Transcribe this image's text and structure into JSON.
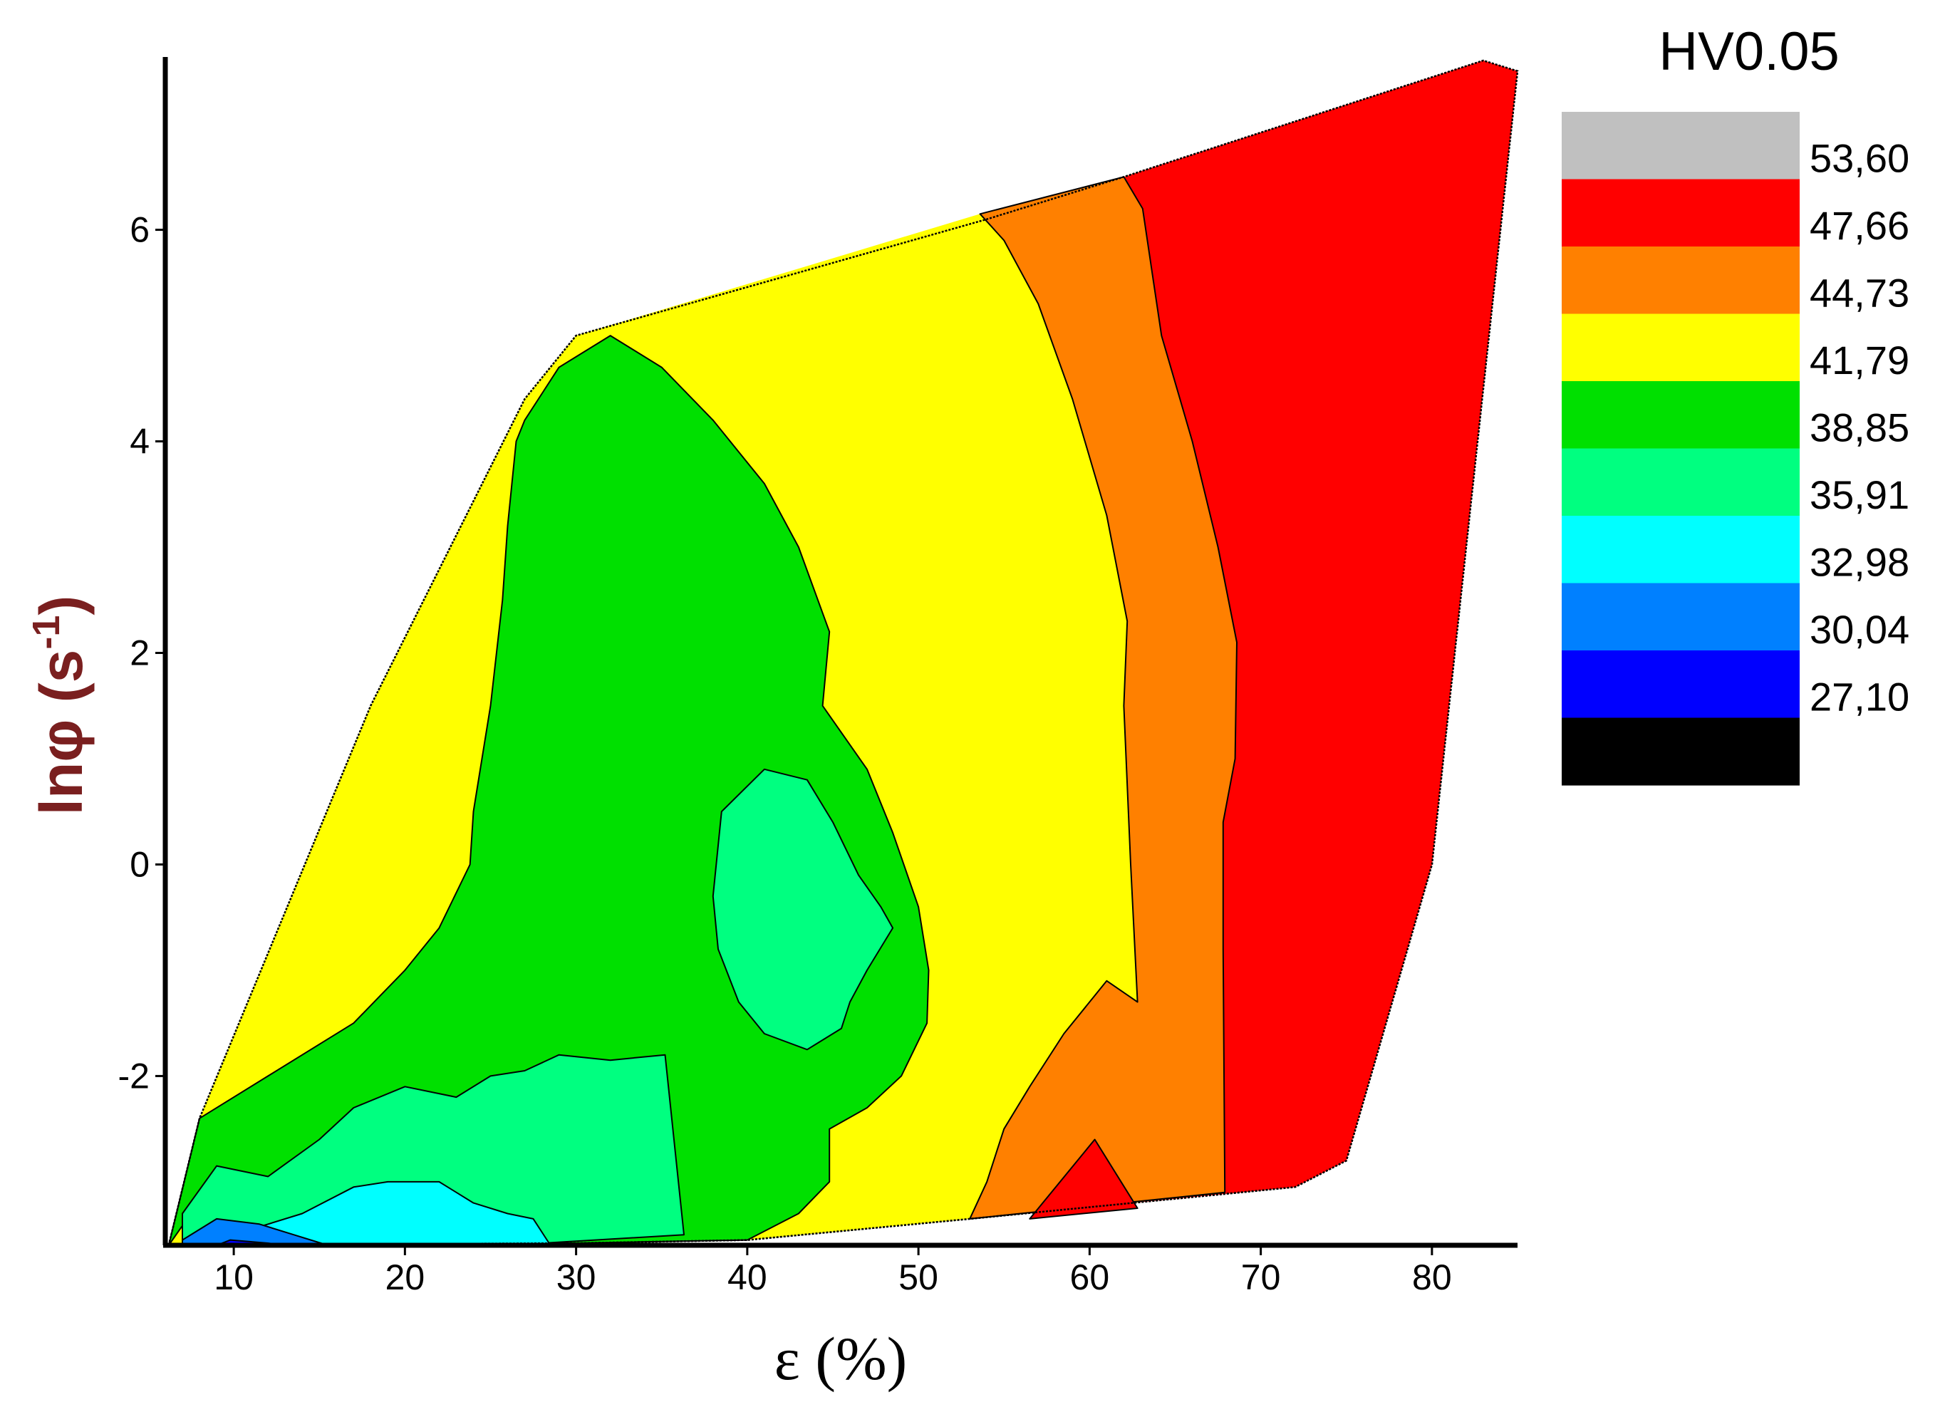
{
  "chart_data": {
    "type": "contour",
    "title": "",
    "xlabel": "ε (%)",
    "ylabel_main": "lnφ (s",
    "ylabel_sup": "-1",
    "ylabel_close": ")",
    "xlim": [
      6,
      85
    ],
    "ylim": [
      -3.6,
      7.6
    ],
    "x_ticks": [
      "10",
      "20",
      "30",
      "40",
      "50",
      "60",
      "70",
      "80"
    ],
    "x_tick_values": [
      10,
      20,
      30,
      40,
      50,
      60,
      70,
      80
    ],
    "y_ticks": [
      "-2",
      "0",
      "2",
      "4",
      "6"
    ],
    "y_tick_values": [
      -2,
      0,
      2,
      4,
      6
    ],
    "legend": {
      "title": "HV0.05",
      "levels": [
        "53,60",
        "47,66",
        "44,73",
        "41,79",
        "38,85",
        "35,91",
        "32,98",
        "30,04",
        "27,10"
      ],
      "colors": [
        "#c0c0c0",
        "#ff0000",
        "#ff8000",
        "#ffff00",
        "#00e000",
        "#00ff80",
        "#00ffff",
        "#0080ff",
        "#0000ff",
        "#000000"
      ]
    },
    "domain_boundary": [
      [
        6.2,
        -3.6
      ],
      [
        8.0,
        -2.4
      ],
      [
        18.0,
        1.5
      ],
      [
        27.0,
        4.4
      ],
      [
        30.0,
        5.0
      ],
      [
        54.0,
        6.1
      ],
      [
        62.0,
        6.5
      ],
      [
        83.0,
        7.6
      ],
      [
        85.0,
        7.5
      ],
      [
        80.0,
        0.0
      ],
      [
        75.0,
        -2.8
      ],
      [
        72.0,
        -3.05
      ],
      [
        53.0,
        -3.35
      ],
      [
        40.0,
        -3.55
      ],
      [
        30.0,
        -3.58
      ],
      [
        6.2,
        -3.6
      ]
    ],
    "regions": [
      {
        "band": "44,73–47,66",
        "color": "#ff8000",
        "polygon": [
          [
            53.6,
            6.15
          ],
          [
            62.0,
            6.5
          ],
          [
            63.1,
            6.2
          ],
          [
            64.2,
            5.0
          ],
          [
            66.0,
            4.0
          ],
          [
            67.5,
            3.0
          ],
          [
            68.6,
            2.1
          ],
          [
            68.5,
            1.0
          ],
          [
            67.8,
            0.4
          ],
          [
            67.8,
            -0.8
          ],
          [
            67.9,
            -3.1
          ],
          [
            53.0,
            -3.35
          ],
          [
            54.0,
            -3.0
          ],
          [
            55.0,
            -2.5
          ],
          [
            56.5,
            -2.1
          ],
          [
            58.5,
            -1.6
          ],
          [
            61.0,
            -1.1
          ],
          [
            62.8,
            -1.3
          ],
          [
            62.4,
            0.0
          ],
          [
            62.0,
            1.5
          ],
          [
            62.2,
            2.3
          ],
          [
            61.0,
            3.3
          ],
          [
            59.0,
            4.4
          ],
          [
            57.0,
            5.3
          ],
          [
            55.0,
            5.9
          ]
        ]
      },
      {
        "band": "47,66–53,60",
        "color": "#ff0000",
        "polygon": [
          [
            56.5,
            -3.35
          ],
          [
            60.3,
            -2.6
          ],
          [
            62.8,
            -3.25
          ]
        ]
      },
      {
        "band": "41,79–44,73",
        "color": "#00e000",
        "polygon": [
          [
            8.0,
            -2.4
          ],
          [
            12.0,
            -2.0
          ],
          [
            17.0,
            -1.5
          ],
          [
            20.0,
            -1.0
          ],
          [
            22.0,
            -0.6
          ],
          [
            23.8,
            0.0
          ],
          [
            24.0,
            0.5
          ],
          [
            25.0,
            1.5
          ],
          [
            25.7,
            2.5
          ],
          [
            26.0,
            3.2
          ],
          [
            26.5,
            4.0
          ],
          [
            27.0,
            4.2
          ],
          [
            29.0,
            4.7
          ],
          [
            32.0,
            5.0
          ],
          [
            35.0,
            4.7
          ],
          [
            38.0,
            4.2
          ],
          [
            41.0,
            3.6
          ],
          [
            43.0,
            3.0
          ],
          [
            44.8,
            2.2
          ],
          [
            44.4,
            1.5
          ],
          [
            47.0,
            0.9
          ],
          [
            48.5,
            0.3
          ],
          [
            50.0,
            -0.4
          ],
          [
            50.6,
            -1.0
          ],
          [
            50.5,
            -1.5
          ],
          [
            49.0,
            -2.0
          ],
          [
            47.0,
            -2.3
          ],
          [
            44.8,
            -2.5
          ],
          [
            44.8,
            -3.0
          ],
          [
            43.0,
            -3.3
          ],
          [
            40.0,
            -3.55
          ],
          [
            30.0,
            -3.58
          ],
          [
            9.0,
            -3.6
          ],
          [
            7.5,
            -3.3
          ],
          [
            6.2,
            -3.6
          ]
        ]
      },
      {
        "band": "38,85–41,79",
        "color": "#00ff80",
        "polygon": [
          [
            7.0,
            -3.3
          ],
          [
            9.0,
            -2.85
          ],
          [
            12.0,
            -2.95
          ],
          [
            15.0,
            -2.6
          ],
          [
            17.0,
            -2.3
          ],
          [
            20.0,
            -2.1
          ],
          [
            23.0,
            -2.2
          ],
          [
            25.0,
            -2.0
          ],
          [
            27.0,
            -1.95
          ],
          [
            29.0,
            -1.8
          ],
          [
            32.0,
            -1.85
          ],
          [
            35.2,
            -1.8
          ],
          [
            36.3,
            -3.5
          ],
          [
            26.0,
            -3.6
          ],
          [
            7.0,
            -3.6
          ]
        ]
      },
      {
        "band": "38,85–41,79",
        "color": "#00ff80",
        "polygon": [
          [
            38.5,
            0.5
          ],
          [
            41.0,
            0.9
          ],
          [
            43.5,
            0.8
          ],
          [
            45.0,
            0.4
          ],
          [
            46.5,
            -0.1
          ],
          [
            47.8,
            -0.4
          ],
          [
            48.5,
            -0.6
          ],
          [
            47.0,
            -1.0
          ],
          [
            46.0,
            -1.3
          ],
          [
            45.5,
            -1.55
          ],
          [
            43.5,
            -1.75
          ],
          [
            41.0,
            -1.6
          ],
          [
            39.5,
            -1.3
          ],
          [
            38.3,
            -0.8
          ],
          [
            38.0,
            -0.3
          ]
        ]
      },
      {
        "band": "35,91–38,85",
        "color": "#00ffff",
        "polygon": [
          [
            8.0,
            -3.55
          ],
          [
            10.0,
            -3.5
          ],
          [
            14.0,
            -3.3
          ],
          [
            17.0,
            -3.05
          ],
          [
            19.0,
            -3.0
          ],
          [
            22.0,
            -3.0
          ],
          [
            24.0,
            -3.2
          ],
          [
            26.0,
            -3.3
          ],
          [
            27.5,
            -3.35
          ],
          [
            28.5,
            -3.6
          ],
          [
            8.0,
            -3.6
          ]
        ]
      },
      {
        "band": "32,98–35,91",
        "color": "#0080ff",
        "polygon": [
          [
            7.0,
            -3.55
          ],
          [
            9.0,
            -3.35
          ],
          [
            11.5,
            -3.4
          ],
          [
            13.5,
            -3.5
          ],
          [
            15.5,
            -3.6
          ],
          [
            7.0,
            -3.6
          ]
        ]
      },
      {
        "band": "30,04–32,98",
        "color": "#0000ff",
        "polygon": [
          [
            9.0,
            -3.6
          ],
          [
            9.8,
            -3.55
          ],
          [
            12.0,
            -3.58
          ],
          [
            13.0,
            -3.6
          ]
        ]
      }
    ]
  }
}
